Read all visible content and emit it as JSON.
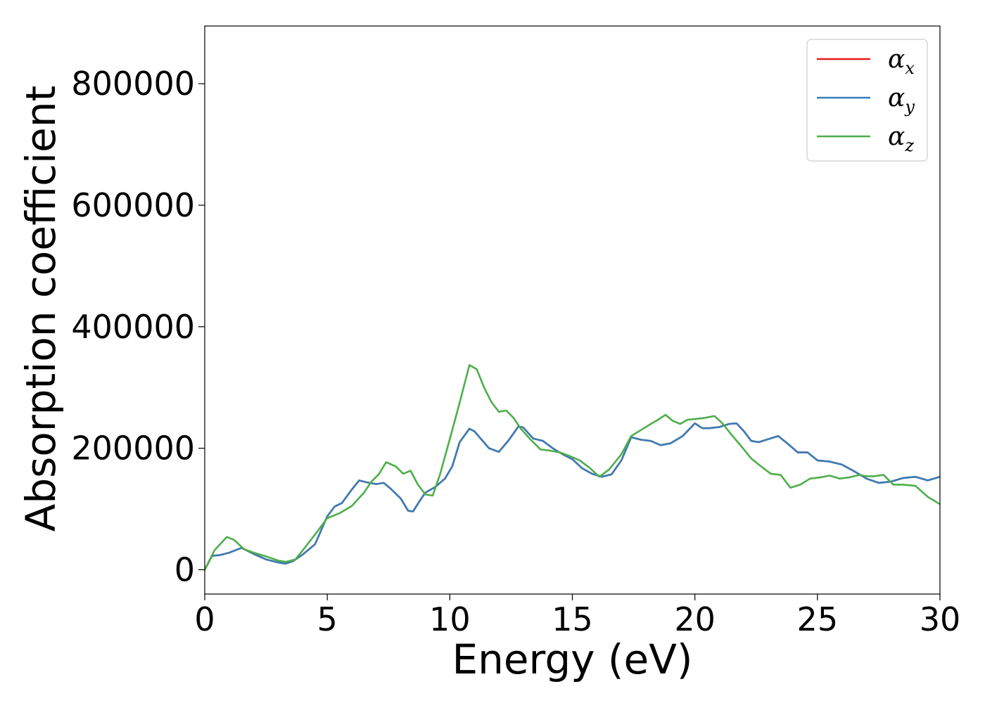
{
  "chart_data": {
    "type": "line",
    "title": "",
    "xlabel": "Energy (eV)",
    "ylabel": "Absorption coefficient",
    "xlim": [
      0,
      30
    ],
    "ylim": [
      -40000,
      895000
    ],
    "x_ticks": [
      0,
      5,
      10,
      15,
      20,
      25,
      30
    ],
    "x_tick_labels": [
      "0",
      "5",
      "10",
      "15",
      "20",
      "25",
      "30"
    ],
    "y_ticks": [
      0,
      200000,
      400000,
      600000,
      800000
    ],
    "y_tick_labels": [
      "0",
      "200000",
      "400000",
      "600000",
      "800000"
    ],
    "grid": false,
    "legend_position": "top-right",
    "series": [
      {
        "name": "αx",
        "symbol": "α",
        "subscript": "x",
        "color": "#e41a1c",
        "x": [
          0,
          0.3,
          0.6,
          1.0,
          1.5,
          2.0,
          2.5,
          3.0,
          3.3,
          3.6,
          4.0,
          4.5,
          5.0,
          5.3,
          5.6,
          6.0,
          6.3,
          6.6,
          7.0,
          7.3,
          7.6,
          8.0,
          8.3,
          8.5,
          8.8,
          9.0,
          9.4,
          9.8,
          10.1,
          10.4,
          10.8,
          11.0,
          11.3,
          11.6,
          12.0,
          12.4,
          12.8,
          13.0,
          13.4,
          13.8,
          14.2,
          14.6,
          15.0,
          15.4,
          15.8,
          16.2,
          16.6,
          17.0,
          17.4,
          17.8,
          18.2,
          18.6,
          19.0,
          19.5,
          20.0,
          20.3,
          20.6,
          21.0,
          21.4,
          21.7,
          22.0,
          22.3,
          22.6,
          23.0,
          23.4,
          23.8,
          24.2,
          24.6,
          25.0,
          25.5,
          26.0,
          26.5,
          27.0,
          27.5,
          28.0,
          28.5,
          29.0,
          29.5,
          30.0
        ],
        "y": [
          0,
          23000,
          24000,
          28000,
          36000,
          26000,
          17000,
          12000,
          10000,
          14000,
          25000,
          42000,
          88000,
          104000,
          110000,
          132000,
          147000,
          144000,
          141000,
          143000,
          133000,
          117000,
          97000,
          96000,
          115000,
          127000,
          136000,
          150000,
          170000,
          210000,
          232000,
          228000,
          214000,
          200000,
          194000,
          213000,
          236000,
          234000,
          216000,
          212000,
          200000,
          190000,
          182000,
          167000,
          158000,
          153000,
          157000,
          180000,
          218000,
          214000,
          212000,
          205000,
          208000,
          220000,
          241000,
          233000,
          233000,
          235000,
          240000,
          241000,
          228000,
          212000,
          210000,
          215000,
          220000,
          207000,
          193000,
          193000,
          180000,
          178000,
          173000,
          162000,
          150000,
          143000,
          145000,
          151000,
          153000,
          147000,
          153000
        ]
      },
      {
        "name": "αy",
        "symbol": "α",
        "subscript": "y",
        "color": "#377eb8",
        "x": [
          0,
          0.3,
          0.6,
          1.0,
          1.5,
          2.0,
          2.5,
          3.0,
          3.3,
          3.6,
          4.0,
          4.5,
          5.0,
          5.3,
          5.6,
          6.0,
          6.3,
          6.6,
          7.0,
          7.3,
          7.6,
          8.0,
          8.3,
          8.5,
          8.8,
          9.0,
          9.4,
          9.8,
          10.1,
          10.4,
          10.8,
          11.0,
          11.3,
          11.6,
          12.0,
          12.4,
          12.8,
          13.0,
          13.4,
          13.8,
          14.2,
          14.6,
          15.0,
          15.4,
          15.8,
          16.2,
          16.6,
          17.0,
          17.4,
          17.8,
          18.2,
          18.6,
          19.0,
          19.5,
          20.0,
          20.3,
          20.6,
          21.0,
          21.4,
          21.7,
          22.0,
          22.3,
          22.6,
          23.0,
          23.4,
          23.8,
          24.2,
          24.6,
          25.0,
          25.5,
          26.0,
          26.5,
          27.0,
          27.5,
          28.0,
          28.5,
          29.0,
          29.5,
          30.0
        ],
        "y": [
          0,
          23000,
          24000,
          28000,
          36000,
          26000,
          17000,
          12000,
          10000,
          14000,
          25000,
          42000,
          88000,
          104000,
          110000,
          132000,
          147000,
          144000,
          141000,
          143000,
          133000,
          117000,
          97000,
          96000,
          115000,
          127000,
          136000,
          150000,
          170000,
          210000,
          232000,
          228000,
          214000,
          200000,
          194000,
          213000,
          236000,
          234000,
          216000,
          212000,
          200000,
          190000,
          182000,
          167000,
          158000,
          153000,
          157000,
          180000,
          218000,
          214000,
          212000,
          205000,
          208000,
          220000,
          241000,
          233000,
          233000,
          235000,
          240000,
          241000,
          228000,
          212000,
          210000,
          215000,
          220000,
          207000,
          193000,
          193000,
          180000,
          178000,
          173000,
          162000,
          150000,
          143000,
          145000,
          151000,
          153000,
          147000,
          153000
        ]
      },
      {
        "name": "αz",
        "symbol": "α",
        "subscript": "z",
        "color": "#4daf4a",
        "x": [
          0,
          0.4,
          0.9,
          1.2,
          1.6,
          2.0,
          2.5,
          3.0,
          3.3,
          3.7,
          4.0,
          4.5,
          5.0,
          5.5,
          6.0,
          6.5,
          6.8,
          7.1,
          7.4,
          7.8,
          8.1,
          8.4,
          8.7,
          9.0,
          9.3,
          9.6,
          10.0,
          10.4,
          10.8,
          11.1,
          11.4,
          11.7,
          12.0,
          12.3,
          12.6,
          12.9,
          13.3,
          13.7,
          14.1,
          14.5,
          14.9,
          15.3,
          15.7,
          16.1,
          16.5,
          17.0,
          17.4,
          17.8,
          18.2,
          18.5,
          18.8,
          19.1,
          19.4,
          19.7,
          20.0,
          20.4,
          20.8,
          21.1,
          21.5,
          21.9,
          22.3,
          22.7,
          23.1,
          23.5,
          23.9,
          24.3,
          24.7,
          25.1,
          25.5,
          25.9,
          26.3,
          26.7,
          27.0,
          27.3,
          27.7,
          28.1,
          28.5,
          29.0,
          29.5,
          30.0
        ],
        "y": [
          0,
          32000,
          54000,
          49000,
          34000,
          28000,
          22000,
          15000,
          13000,
          17000,
          32000,
          58000,
          85000,
          93000,
          105000,
          127000,
          145000,
          157000,
          177000,
          170000,
          158000,
          163000,
          140000,
          124000,
          122000,
          157000,
          215000,
          275000,
          337000,
          330000,
          300000,
          276000,
          260000,
          262000,
          250000,
          232000,
          214000,
          198000,
          196000,
          193000,
          187000,
          180000,
          168000,
          153000,
          165000,
          190000,
          220000,
          230000,
          240000,
          247000,
          255000,
          245000,
          240000,
          247000,
          248000,
          250000,
          253000,
          242000,
          222000,
          203000,
          183000,
          170000,
          158000,
          156000,
          135000,
          140000,
          150000,
          152000,
          155000,
          150000,
          152000,
          156000,
          154000,
          154000,
          156000,
          140000,
          140000,
          138000,
          120000,
          108000
        ]
      }
    ]
  }
}
